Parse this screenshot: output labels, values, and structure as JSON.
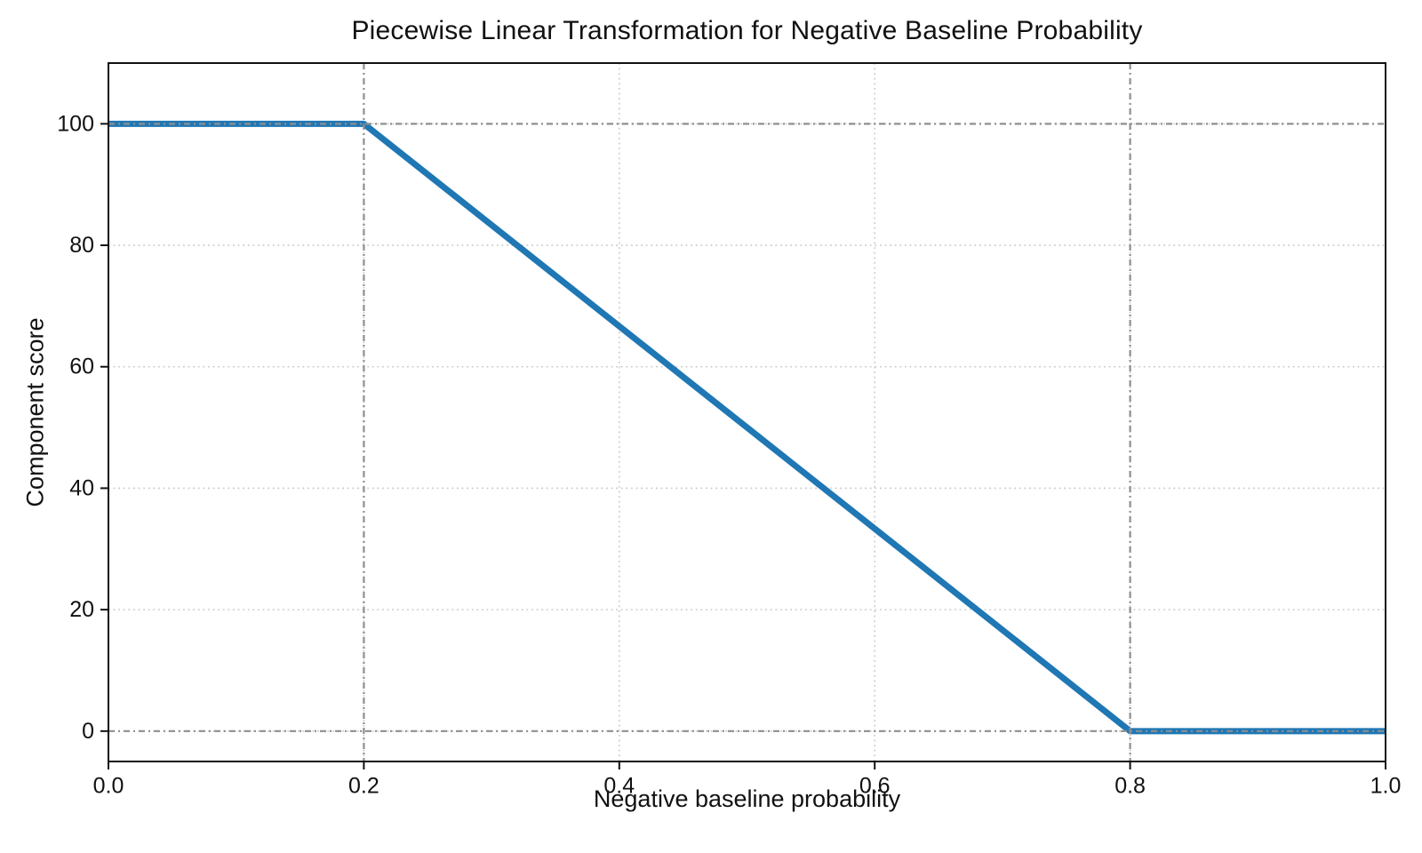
{
  "figure": {
    "background_color": "#ffffff",
    "axes_color": "#111111"
  },
  "chart_data": {
    "type": "line",
    "title": "Piecewise Linear Transformation for Negative Baseline Probability",
    "xlabel": "Negative baseline probability",
    "ylabel": "Component score",
    "xlim": [
      0,
      1
    ],
    "ylim": [
      -5,
      110
    ],
    "xticks": {
      "values": [
        0,
        0.2,
        0.4,
        0.6,
        0.8,
        1
      ],
      "labels": [
        "0.0",
        "0.2",
        "0.4",
        "0.6",
        "0.8",
        "1.0"
      ]
    },
    "yticks": {
      "values": [
        0,
        20,
        40,
        60,
        80,
        100
      ],
      "labels": [
        "0",
        "20",
        "40",
        "60",
        "80",
        "100"
      ]
    },
    "grid": {
      "show": true,
      "color": "#c9c9c9",
      "linestyle": "dotted",
      "linewidth": 1.6
    },
    "reference_lines": {
      "x": [
        0.2,
        0.8
      ],
      "y": [
        0,
        100
      ],
      "color": "#8f8f8f",
      "linestyle": "dash-dot",
      "linewidth": 2.2
    },
    "series": [
      {
        "name": "component-score-transform",
        "color": "#1f77b4",
        "linewidth": 7,
        "points": [
          [
            0.0,
            100
          ],
          [
            0.2,
            100
          ],
          [
            0.8,
            0
          ],
          [
            1.0,
            0
          ]
        ]
      }
    ],
    "legend": {
      "visible": false
    },
    "breakpoints": [
      [
        0.2,
        100
      ],
      [
        0.8,
        0
      ]
    ]
  }
}
